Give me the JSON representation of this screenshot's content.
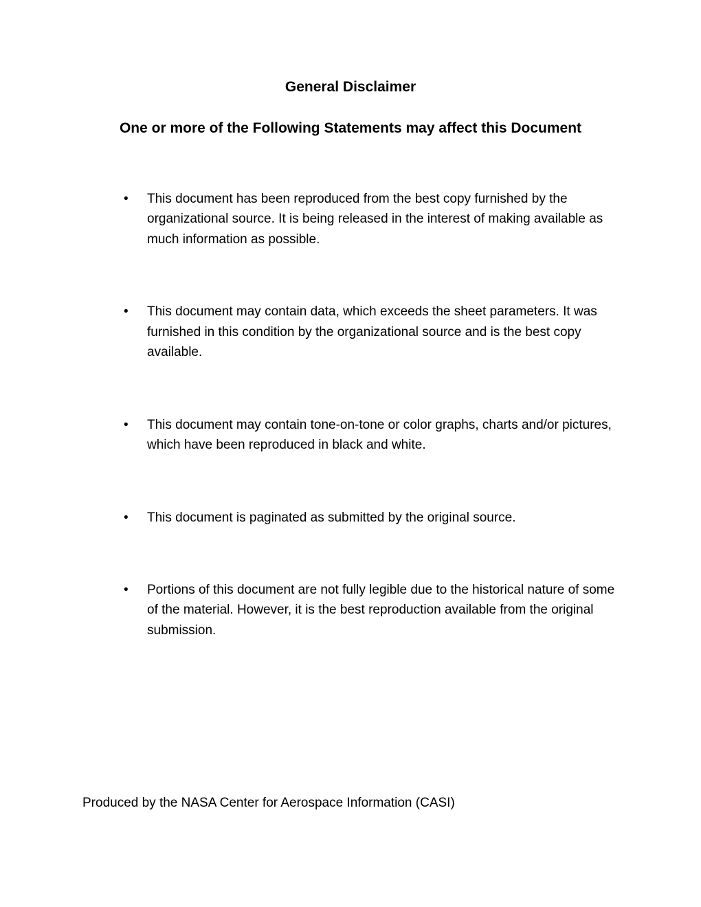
{
  "title": "General Disclaimer",
  "subtitle": "One or more of the Following Statements may affect this Document",
  "bullets": [
    "This document has been reproduced from the best copy furnished by the organizational source. It is being released in the interest of making available as much information as possible.",
    "This document may contain data, which exceeds the sheet parameters. It was furnished in this condition by the organizational source and is the best copy available.",
    "This document may contain tone-on-tone or color graphs, charts and/or pictures, which have been reproduced in black and white.",
    "This document is paginated as submitted by the original source.",
    "Portions of this document are not fully legible due to the historical nature of some of the material. However, it is the best reproduction available from the original submission."
  ],
  "footer": "Produced by the NASA Center for Aerospace Information (CASI)"
}
